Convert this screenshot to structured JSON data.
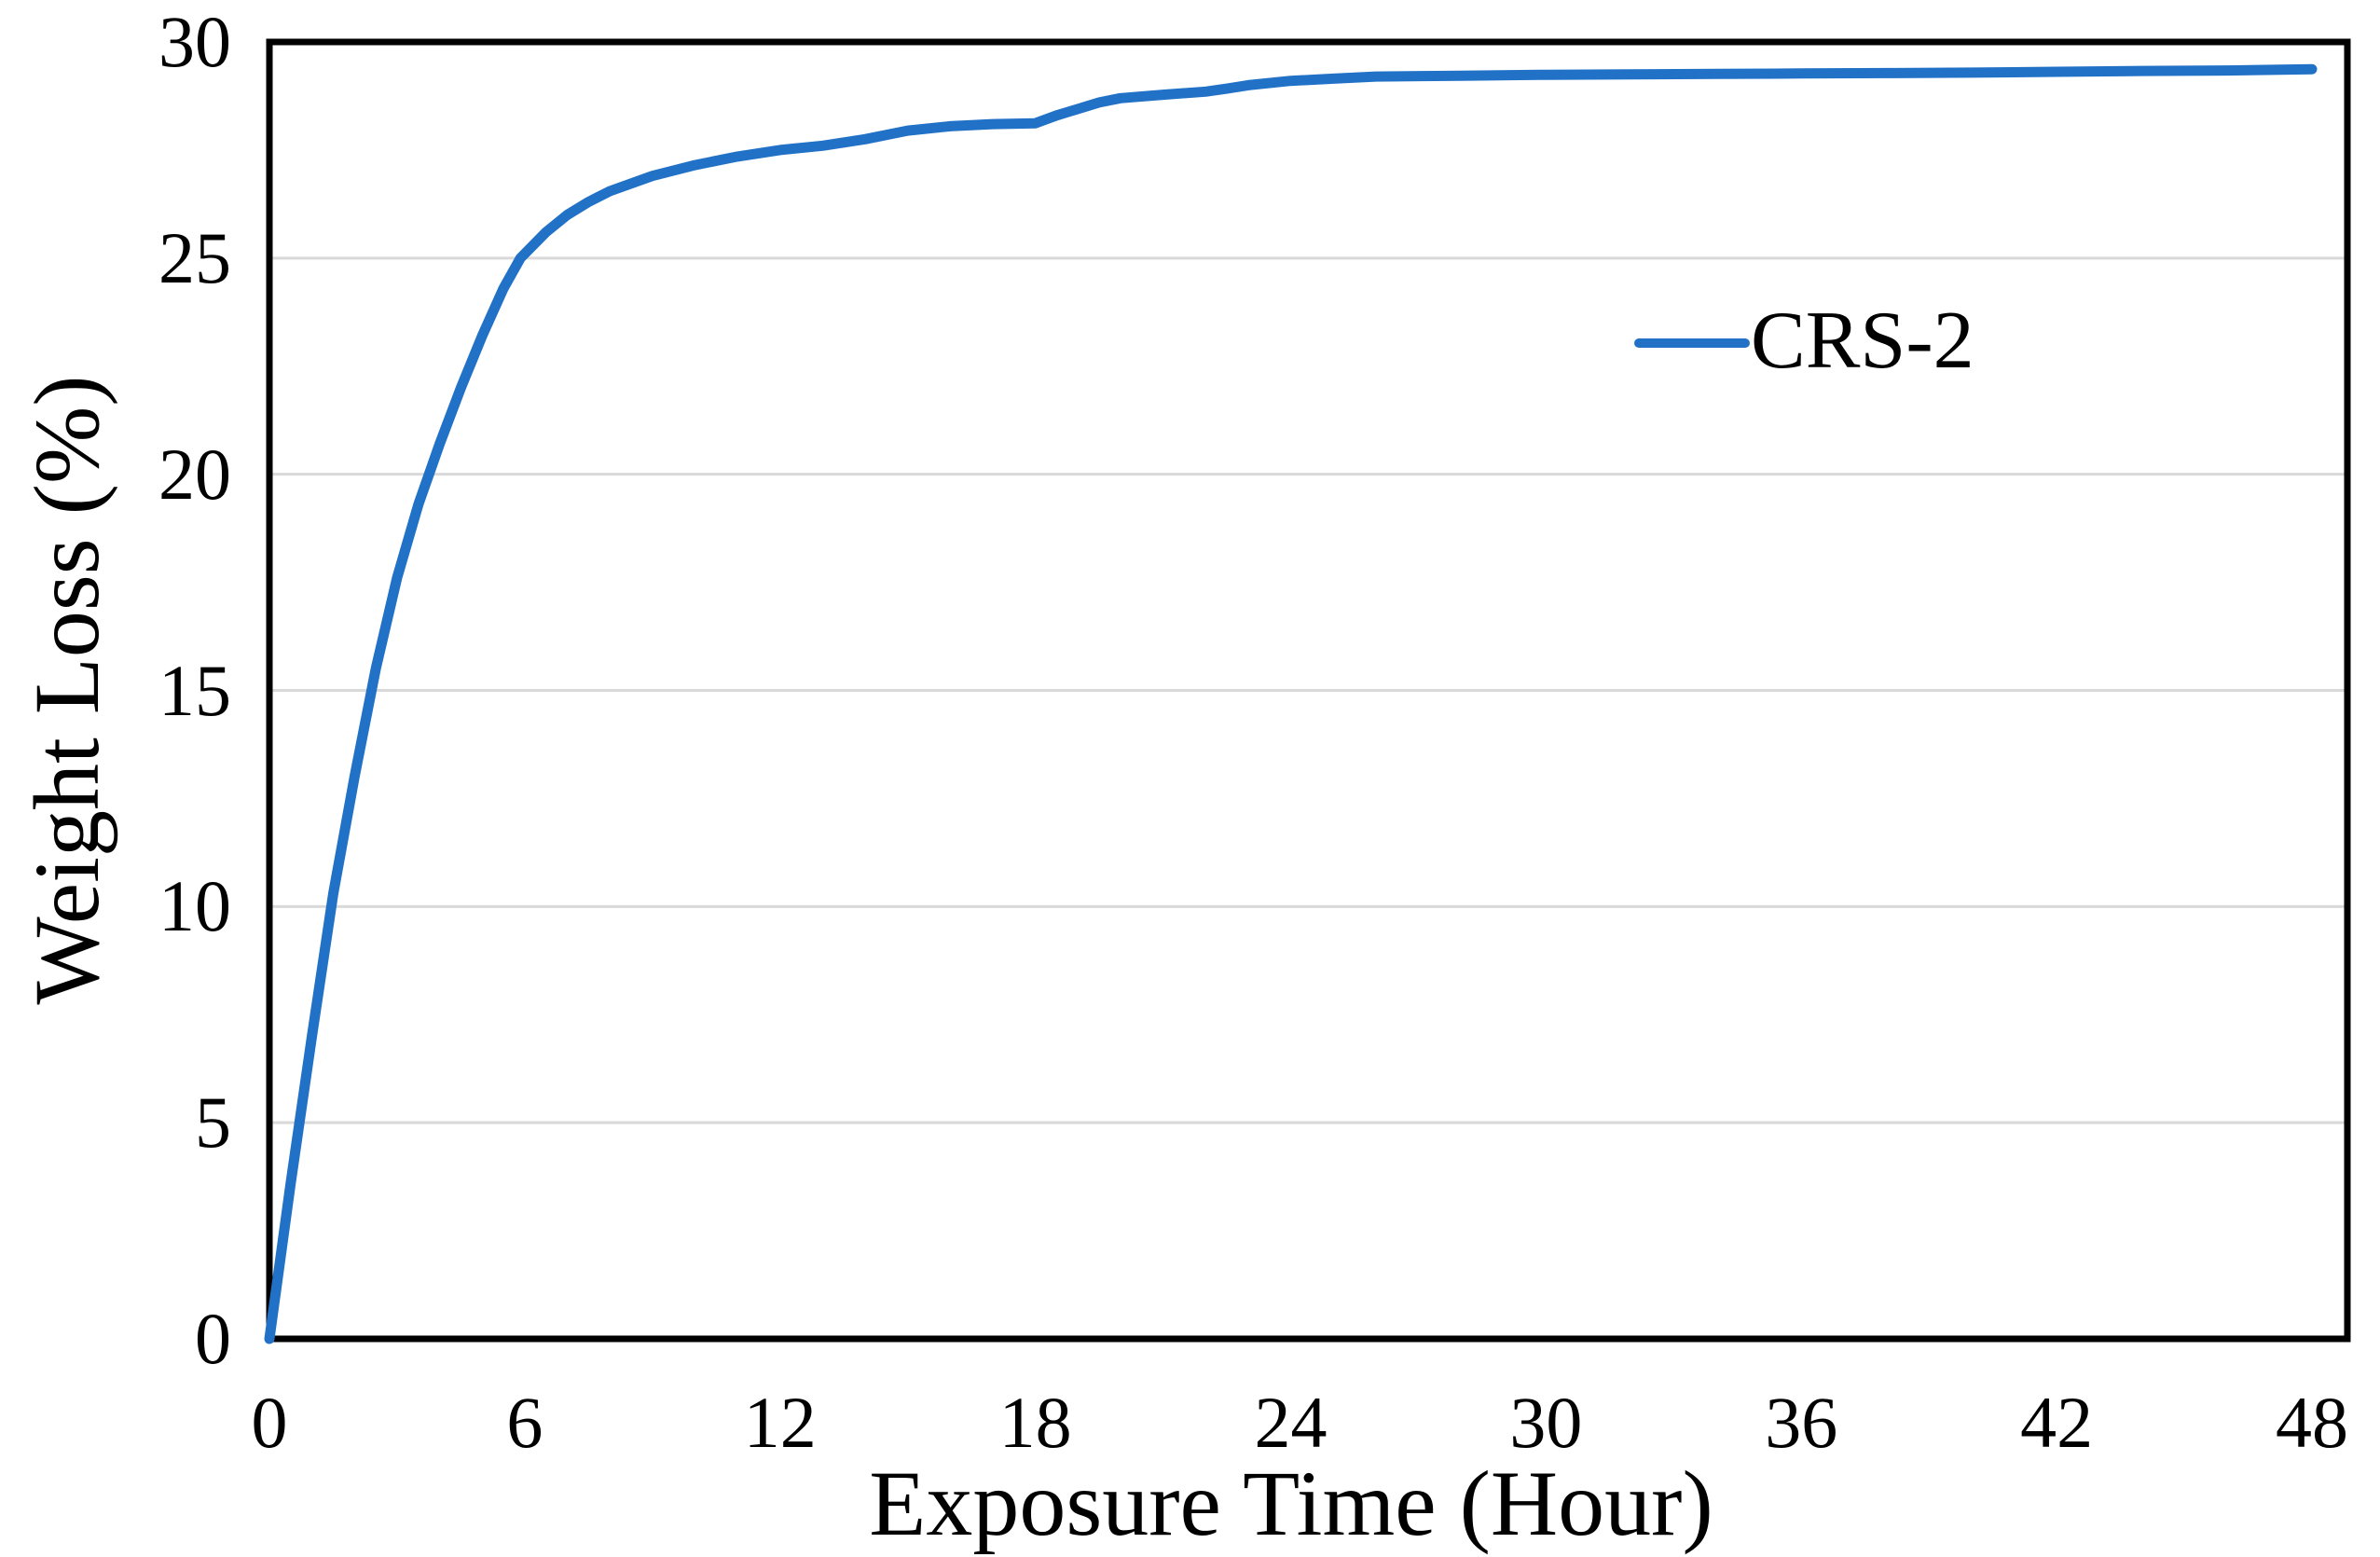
{
  "chart_data": {
    "type": "line",
    "title": "",
    "xlabel": "Exposure Time (Hour)",
    "ylabel": "Weight Loss (%)",
    "xlim": [
      0,
      48
    ],
    "ylim": [
      0,
      30
    ],
    "x_ticks": [
      0,
      6,
      12,
      18,
      24,
      30,
      36,
      42,
      48
    ],
    "y_ticks": [
      0,
      5,
      10,
      15,
      20,
      25,
      30
    ],
    "grid": "horizontal-only",
    "legend_position": "inside-upper-right",
    "series": [
      {
        "name": "CRS-2",
        "color": "#2171C7",
        "points": [
          [
            0,
            0
          ],
          [
            0.5,
            3.6
          ],
          [
            1,
            7.0
          ],
          [
            1.5,
            10.3
          ],
          [
            2,
            13.0
          ],
          [
            2.5,
            15.5
          ],
          [
            3,
            17.6
          ],
          [
            3.5,
            19.3
          ],
          [
            4,
            20.7
          ],
          [
            4.5,
            22.0
          ],
          [
            5,
            23.2
          ],
          [
            5.5,
            24.3
          ],
          [
            5.9,
            25.0
          ],
          [
            6.5,
            25.6
          ],
          [
            7,
            26.0
          ],
          [
            7.5,
            26.3
          ],
          [
            8,
            26.55
          ],
          [
            9,
            26.9
          ],
          [
            10,
            27.15
          ],
          [
            11,
            27.35
          ],
          [
            12,
            27.5
          ],
          [
            13,
            27.6
          ],
          [
            14,
            27.75
          ],
          [
            15,
            27.95
          ],
          [
            16,
            28.05
          ],
          [
            17,
            28.1
          ],
          [
            18,
            28.12
          ],
          [
            18.5,
            28.3
          ],
          [
            19,
            28.45
          ],
          [
            19.5,
            28.6
          ],
          [
            20,
            28.7
          ],
          [
            21,
            28.78
          ],
          [
            22,
            28.85
          ],
          [
            22.5,
            28.92
          ],
          [
            23,
            29.0
          ],
          [
            24,
            29.1
          ],
          [
            25,
            29.15
          ],
          [
            26,
            29.2
          ],
          [
            28,
            29.22
          ],
          [
            30,
            29.24
          ],
          [
            32,
            29.25
          ],
          [
            34,
            29.26
          ],
          [
            36,
            29.27
          ],
          [
            38,
            29.28
          ],
          [
            40,
            29.29
          ],
          [
            42,
            29.31
          ],
          [
            44,
            29.33
          ],
          [
            46,
            29.34
          ],
          [
            48,
            29.37
          ]
        ]
      }
    ],
    "colors": {
      "line": "#2171C7",
      "gridline": "#D9D9D9",
      "frame": "#000000",
      "text": "#000000",
      "background": "#FFFFFF"
    }
  },
  "x_axis": {
    "title": "Exposure Time (Hour)"
  },
  "y_axis": {
    "title": "Weight Loss (%)"
  },
  "legend": {
    "label": "CRS-2"
  }
}
